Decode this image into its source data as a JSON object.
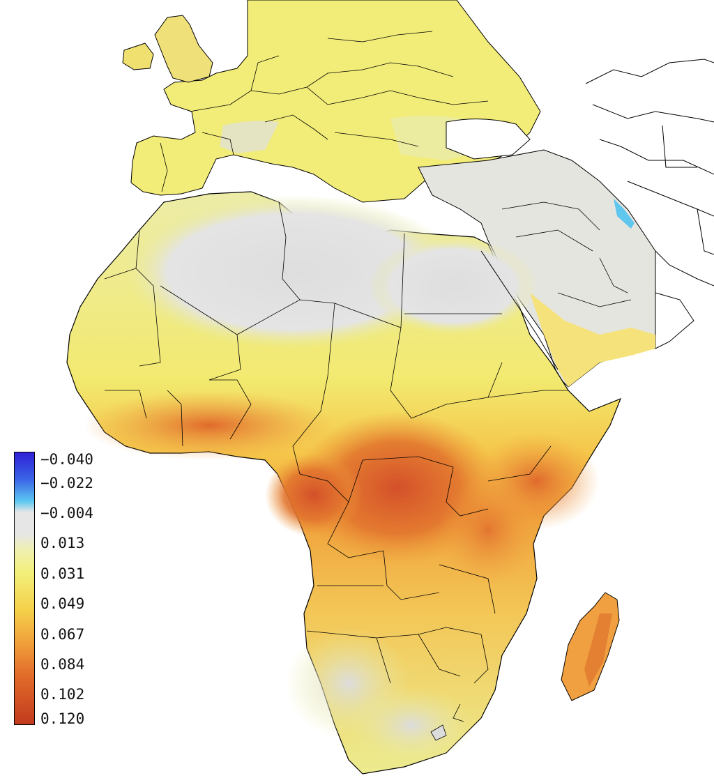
{
  "legend": {
    "ticks": [
      "−0.040",
      "−0.022",
      "−0.004",
      "0.013",
      "0.031",
      "0.049",
      "0.067",
      "0.084",
      "0.102",
      "0.120"
    ],
    "colors": {
      "negative_high": "#2f1fd6",
      "negative_low": "#5cc8f0",
      "zero": "#e6e6e6",
      "low": "#f2f07a",
      "mid": "#f5d04a",
      "high": "#ee8a2e",
      "max": "#c23a1e"
    }
  },
  "map": {
    "region": "Africa, Europe and Middle East",
    "ocean_color": "#ffffff",
    "border_color": "#000000"
  }
}
